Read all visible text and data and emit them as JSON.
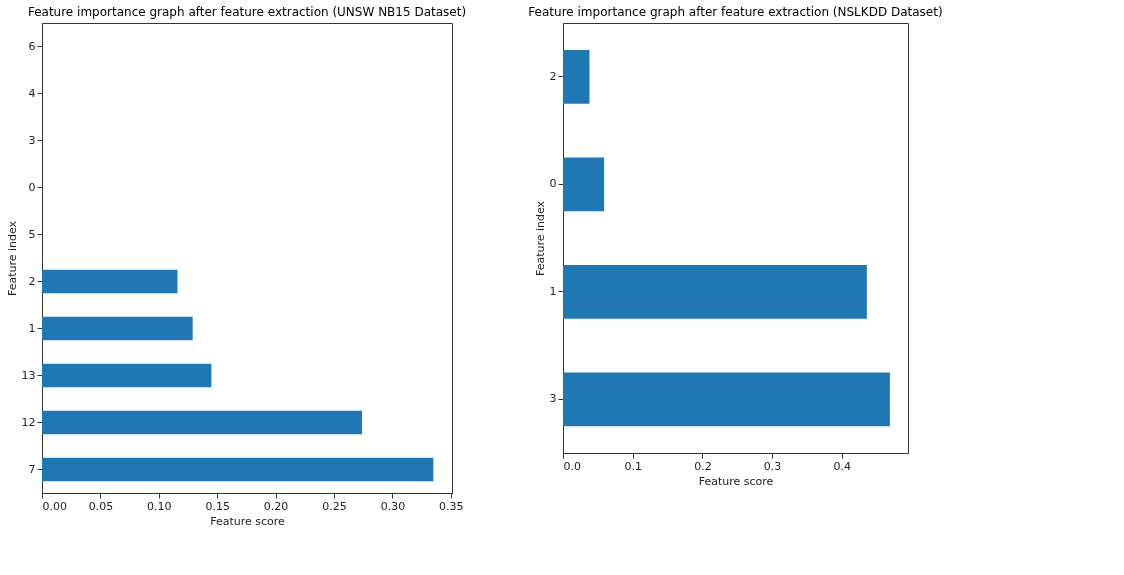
{
  "chart_data": [
    {
      "type": "bar",
      "orientation": "horizontal",
      "title": "Feature importance graph after feature extraction (UNSW NB15 Dataset)",
      "xlabel": "Feature score",
      "ylabel": "Feature index",
      "categories": [
        "6",
        "4",
        "3",
        "0",
        "5",
        "2",
        "1",
        "13",
        "12",
        "7"
      ],
      "values": [
        0,
        0,
        0,
        0,
        0,
        0.116,
        0.129,
        0.145,
        0.274,
        0.335
      ],
      "color": "#1f77b4",
      "xlim": [
        0,
        0.351
      ],
      "xticks": [
        {
          "value": 0,
          "label": "0.00"
        },
        0.05,
        {
          "value": 0.1,
          "label": "0.10"
        },
        0.15,
        {
          "value": 0.2,
          "label": "0.20"
        },
        0.25,
        {
          "value": 0.3,
          "label": "0.30"
        },
        0.35
      ],
      "grid": false
    },
    {
      "type": "bar",
      "orientation": "horizontal",
      "title": "Feature importance graph after feature extraction (NSLKDD Dataset)",
      "xlabel": "Feature score",
      "ylabel": "Feature index",
      "categories": [
        "2",
        "0",
        "1",
        "3"
      ],
      "values": [
        0.038,
        0.059,
        0.436,
        0.469
      ],
      "color": "#1f77b4",
      "xlim": [
        0,
        0.495
      ],
      "xticks": [
        {
          "value": 0,
          "label": "0.0"
        },
        0.1,
        0.2,
        0.3,
        0.4
      ],
      "grid": false
    }
  ]
}
